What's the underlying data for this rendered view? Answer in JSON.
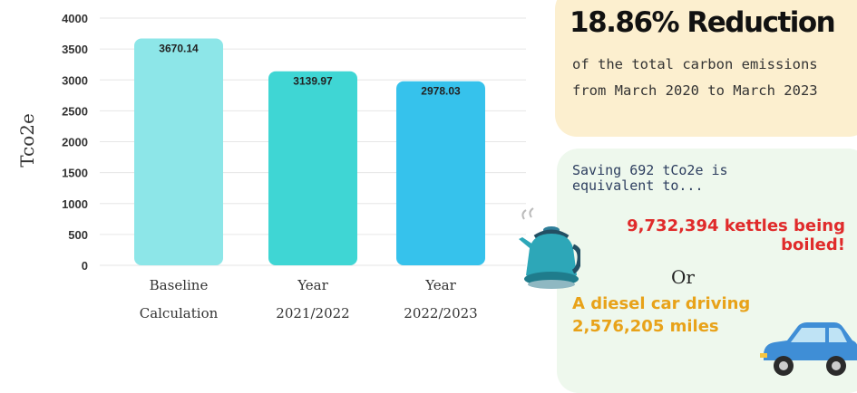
{
  "chart_data": {
    "type": "bar",
    "categories": [
      [
        "Baseline",
        "Calculation"
      ],
      [
        "Year",
        "2021/2022"
      ],
      [
        "Year",
        "2022/2023"
      ]
    ],
    "values": [
      3670.14,
      3139.97,
      2978.03
    ],
    "data_labels": [
      "3670.14",
      "3139.97",
      "2978.03"
    ],
    "ylabel": "Tco2e",
    "ylim": [
      0,
      4000
    ],
    "yticks": [
      "0",
      "500",
      "1000",
      "1500",
      "2000",
      "2500",
      "3000",
      "3500",
      "4000"
    ],
    "grid": true,
    "colors": [
      "#8de6e8",
      "#3fd6d4",
      "#36c2ec"
    ]
  },
  "summary": {
    "headline": "18.86% Reduction",
    "description": "of the total carbon emissions from March 2020 to March 2023"
  },
  "equivalence": {
    "intro": "Saving 692 tCo2e is equivalent to...",
    "kettles": "9,732,394 kettles being boiled!",
    "or": "Or",
    "car": "A diesel car driving 2,576,205 miles",
    "kettle_icon": "kettle-icon",
    "car_icon": "car-icon",
    "colors": {
      "kettles": "#e02b2b",
      "car": "#e8a219",
      "intro": "#2d3e5f"
    }
  }
}
